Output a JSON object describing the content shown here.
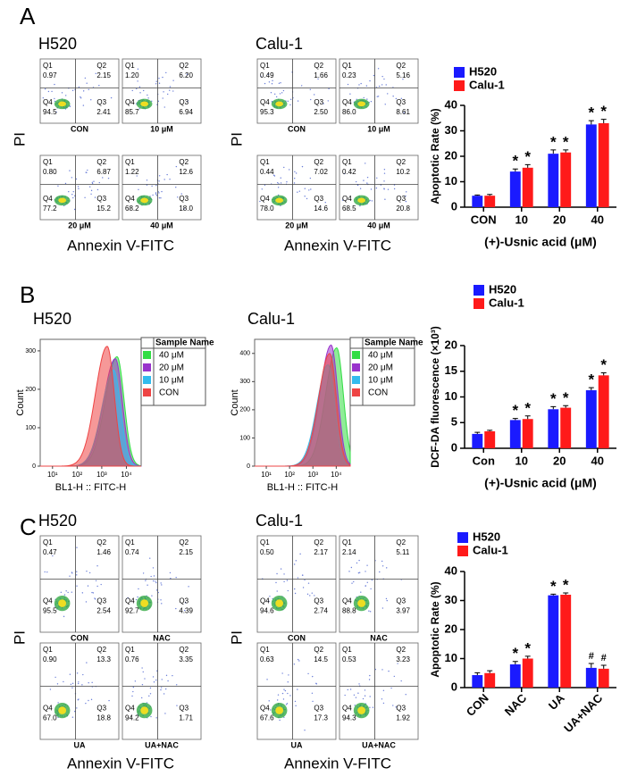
{
  "panel_labels": [
    "A",
    "B",
    "C"
  ],
  "quadrant_names": [
    "Q1",
    "Q2",
    "Q3",
    "Q4"
  ],
  "flow": [
    {
      "cell": "H520",
      "y_label": "PI",
      "x_label": "Annexin V-FITC",
      "plots": [
        {
          "name": "CON",
          "quadrants": [
            "0.97",
            "2.15",
            "2.41",
            "94.5"
          ]
        },
        {
          "name": "10 μM",
          "quadrants": [
            "1.20",
            "6.20",
            "6.94",
            "85.7"
          ]
        },
        {
          "name": "20 μM",
          "quadrants": [
            "0.80",
            "6.87",
            "15.2",
            "77.2"
          ]
        },
        {
          "name": "40 μM",
          "quadrants": [
            "1.22",
            "12.6",
            "18.0",
            "68.2"
          ]
        }
      ]
    },
    {
      "cell": "Calu-1",
      "y_label": "PI",
      "x_label": "Annexin V-FITC",
      "plots": [
        {
          "name": "CON",
          "quadrants": [
            "0.49",
            "1.66",
            "2.50",
            "95.3"
          ]
        },
        {
          "name": "10 μM",
          "quadrants": [
            "0.23",
            "5.16",
            "8.61",
            "86.0"
          ]
        },
        {
          "name": "20 μM",
          "quadrants": [
            "0.44",
            "7.02",
            "14.6",
            "78.0"
          ]
        },
        {
          "name": "40 μM",
          "quadrants": [
            "0.42",
            "10.2",
            "20.8",
            "68.5"
          ]
        }
      ]
    },
    {
      "cell": "H520",
      "y_label": "PI",
      "x_label": "Annexin V-FITC",
      "plots": [
        {
          "name": "CON",
          "quadrants": [
            "0.47",
            "1.46",
            "2.54",
            "95.5"
          ]
        },
        {
          "name": "NAC",
          "quadrants": [
            "0.74",
            "2.15",
            "4.39",
            "92.7"
          ]
        },
        {
          "name": "UA",
          "quadrants": [
            "0.90",
            "13.3",
            "18.8",
            "67.0"
          ]
        },
        {
          "name": "UA+NAC",
          "quadrants": [
            "0.76",
            "3.35",
            "1.71",
            "94.2"
          ]
        }
      ]
    },
    {
      "cell": "Calu-1",
      "y_label": "PI",
      "x_label": "Annexin V-FITC",
      "plots": [
        {
          "name": "CON",
          "quadrants": [
            "0.50",
            "2.17",
            "2.74",
            "94.6"
          ]
        },
        {
          "name": "NAC",
          "quadrants": [
            "2.14",
            "5.11",
            "3.97",
            "88.8"
          ]
        },
        {
          "name": "UA",
          "quadrants": [
            "0.63",
            "14.5",
            "17.3",
            "67.6"
          ]
        },
        {
          "name": "UA+NAC",
          "quadrants": [
            "0.53",
            "3.23",
            "1.92",
            "94.3"
          ]
        }
      ]
    }
  ],
  "histograms": [
    {
      "cell": "H520",
      "x_label": "BL1-H :: FITC-H",
      "y_label": "Count",
      "legend_title": "Sample Name",
      "xlim": [
        0.5,
        4.6
      ],
      "xticks": [
        {
          "value": 1,
          "label": "10¹"
        },
        {
          "value": 2,
          "label": "10²"
        },
        {
          "value": 3,
          "label": "10³"
        },
        {
          "value": 4,
          "label": "10⁴"
        }
      ],
      "ylim": [
        0,
        330
      ],
      "yticks": [
        0,
        100,
        200,
        300
      ],
      "series": [
        {
          "name": "40 μM",
          "color": "#33dd44",
          "peak_x": 3.62,
          "peak_count": 285
        },
        {
          "name": "20 μM",
          "color": "#9933cc",
          "peak_x": 3.55,
          "peak_count": 280
        },
        {
          "name": "10 μM",
          "color": "#33bbee",
          "peak_x": 3.48,
          "peak_count": 250
        },
        {
          "name": "CON",
          "color": "#ee4444",
          "peak_x": 3.22,
          "peak_count": 312
        }
      ]
    },
    {
      "cell": "Calu-1",
      "x_label": "BL1-H :: FITC-H",
      "y_label": "Count",
      "legend_title": "Sample Name",
      "xlim": [
        0.5,
        4.6
      ],
      "xticks": [
        {
          "value": 1,
          "label": "10¹"
        },
        {
          "value": 2,
          "label": "10²"
        },
        {
          "value": 3,
          "label": "10³"
        },
        {
          "value": 4,
          "label": "10⁴"
        }
      ],
      "ylim": [
        0,
        450
      ],
      "yticks": [
        0,
        100,
        200,
        300,
        400
      ],
      "series": [
        {
          "name": "40 μM",
          "color": "#33dd44",
          "peak_x": 4.02,
          "peak_count": 420
        },
        {
          "name": "20 μM",
          "color": "#9933cc",
          "peak_x": 3.78,
          "peak_count": 430
        },
        {
          "name": "10 μM",
          "color": "#33bbee",
          "peak_x": 3.65,
          "peak_count": 360
        },
        {
          "name": "CON",
          "color": "#ee4444",
          "peak_x": 3.72,
          "peak_count": 400
        }
      ]
    }
  ],
  "chart_data": [
    {
      "type": "bar",
      "y_label": "Apoptotic Rate (%)",
      "x_label": "(+)-Usnic acid (μM)",
      "categories": [
        "CON",
        "10",
        "20",
        "40"
      ],
      "ylim": [
        0,
        40
      ],
      "yticks": [
        0,
        10,
        20,
        30,
        40
      ],
      "series": [
        {
          "name": "H520",
          "color": "#1a1aff",
          "values": [
            4.5,
            14,
            21,
            32.5
          ],
          "errors": [
            0.3,
            1,
            1.5,
            1.5
          ],
          "markers": [
            null,
            "*",
            "*",
            "*"
          ]
        },
        {
          "name": "Calu-1",
          "color": "#ff1a1a",
          "values": [
            4.5,
            15.5,
            21.5,
            33
          ],
          "errors": [
            0.5,
            1.2,
            1,
            1.5
          ],
          "markers": [
            null,
            "*",
            "*",
            "*"
          ]
        }
      ]
    },
    {
      "type": "bar",
      "y_label": "DCF-DA fluorescence (×10³)",
      "x_label": "(+)-Usnic acid (μM)",
      "categories": [
        "Con",
        "10",
        "20",
        "40"
      ],
      "ylim": [
        0,
        20
      ],
      "yticks": [
        0,
        5,
        10,
        15,
        20
      ],
      "series": [
        {
          "name": "H520",
          "color": "#1a1aff",
          "values": [
            2.8,
            5.5,
            7.6,
            11.3
          ],
          "errors": [
            0.3,
            0.3,
            0.5,
            0.5
          ],
          "markers": [
            null,
            "*",
            "*",
            "*"
          ]
        },
        {
          "name": "Calu-1",
          "color": "#ff1a1a",
          "values": [
            3.3,
            5.7,
            7.9,
            14.2
          ],
          "errors": [
            0.2,
            0.6,
            0.4,
            0.5
          ],
          "markers": [
            null,
            "*",
            "*",
            "*"
          ]
        }
      ]
    },
    {
      "type": "bar",
      "y_label": "Apoptotic Rate (%)",
      "xtick_rotation": -45,
      "categories": [
        "CON",
        "NAC",
        "UA",
        "UA+NAC"
      ],
      "ylim": [
        0,
        40
      ],
      "yticks": [
        0,
        10,
        20,
        30,
        40
      ],
      "series": [
        {
          "name": "H520",
          "color": "#1a1aff",
          "values": [
            4.3,
            8,
            31.8,
            6.8
          ],
          "errors": [
            0.8,
            1,
            0.4,
            1.5
          ],
          "markers": [
            null,
            "*",
            "*",
            "#"
          ]
        },
        {
          "name": "Calu-1",
          "color": "#ff1a1a",
          "values": [
            5,
            10,
            32,
            6.5
          ],
          "errors": [
            0.8,
            0.8,
            0.6,
            1.2
          ],
          "markers": [
            null,
            "*",
            "*",
            "#"
          ]
        }
      ]
    }
  ]
}
